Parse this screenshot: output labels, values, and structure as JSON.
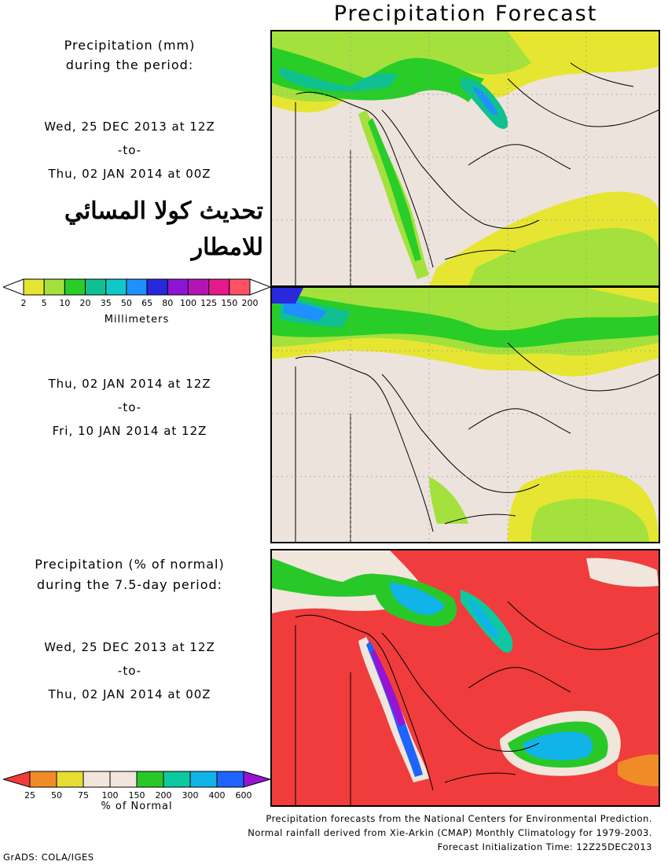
{
  "title": "Precipitation Forecast",
  "panel1": {
    "heading_line1": "Precipitation (mm)",
    "heading_line2": "during the period:",
    "from": "Wed, 25 DEC 2013 at 12Z",
    "to_word": "-to-",
    "to": "Thu, 02 JAN 2014 at 00Z"
  },
  "overlay_text": {
    "line1": "تحديث كولا المسائي",
    "line2": "للامطار"
  },
  "colorbar_mm": {
    "ticks": [
      "2",
      "5",
      "10",
      "20",
      "35",
      "50",
      "65",
      "80",
      "100",
      "125",
      "150",
      "200"
    ],
    "colors": [
      "#ffffff",
      "#e6e632",
      "#a4e13c",
      "#28cd28",
      "#10c090",
      "#10c8c8",
      "#1e90ff",
      "#2828dc",
      "#8c14d2",
      "#b414b4",
      "#e6198c",
      "#ff5064",
      "#ffffff"
    ],
    "label": "Millimeters"
  },
  "panel2": {
    "from": "Thu, 02 JAN 2014 at 12Z",
    "to_word": "-to-",
    "to": "Fri, 10 JAN 2014 at 12Z"
  },
  "panel3": {
    "heading_line1": "Precipitation (% of normal)",
    "heading_line2": "during the 7.5-day period:",
    "from": "Wed, 25 DEC 2013 at 12Z",
    "to_word": "-to-",
    "to": "Thu, 02 JAN 2014 at 00Z"
  },
  "colorbar_pct": {
    "ticks": [
      "25",
      "50",
      "75",
      "100",
      "150",
      "200",
      "300",
      "400",
      "600"
    ],
    "colors": [
      "#f03c3c",
      "#f08c28",
      "#e6dc32",
      "#f0e6dc",
      "#f0e6dc",
      "#28c828",
      "#10c8a0",
      "#10b4e6",
      "#1e64ff",
      "#9614d2"
    ],
    "label": "% of Normal"
  },
  "credits": {
    "line1": "Precipitation forecasts from the National Centers for Environmental Prediction.",
    "line2": "Normal rainfall derived from Xie-Arkin (CMAP) Monthly Climatology for 1979-2003.",
    "line3": "Forecast Initialization Time: 12Z25DEC2013"
  },
  "software": "GrADS: COLA/IGES",
  "colors": {
    "land": "#ede3dd",
    "deficit": "#f03c3c",
    "light": "#e6e632",
    "moderate": "#a4e13c",
    "heavy": "#28cd28",
    "very_heavy": "#10c090",
    "extreme": "#1e90ff"
  }
}
